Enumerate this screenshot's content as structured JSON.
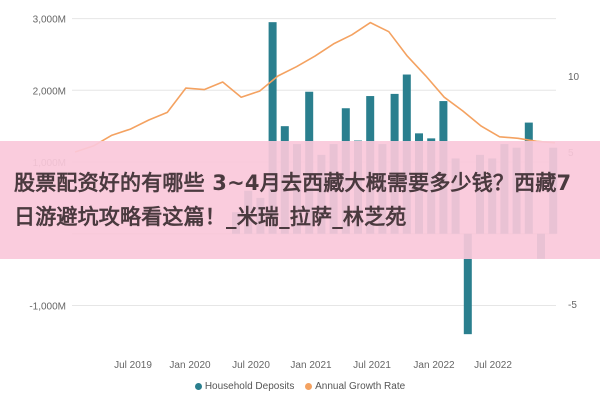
{
  "chart_data": {
    "type": "bar",
    "x_tick_labels": [
      "Jul 2019",
      "Jan 2020",
      "Jul 2020",
      "Jan 2021",
      "Jul 2021",
      "Jan 2022",
      "Jul 2022"
    ],
    "y_left_ticks": [
      "3,000M",
      "2,000M",
      "1,000M",
      "-1,000M"
    ],
    "y_right_ticks": [
      "10",
      "5",
      "-5"
    ],
    "ylim_left": [
      -1300,
      3050
    ],
    "ylim_right": [
      -6.5,
      14
    ],
    "grid": true,
    "legend_position": "bottom",
    "series": [
      {
        "name": "Household Deposits",
        "type": "bar",
        "axis": "left",
        "color": "#2a7f8e",
        "values": [
          300,
          600,
          500,
          2950,
          1500,
          1250,
          1980,
          1100,
          1250,
          1750,
          1300,
          1920,
          1250,
          1950,
          2220,
          1400,
          1330,
          1850,
          1050,
          -1400,
          1100,
          1050,
          1250,
          1200,
          1550,
          -350,
          1200
        ]
      },
      {
        "name": "Annual Growth Rate",
        "type": "line",
        "axis": "right",
        "color": "#f4a261",
        "values": [
          5.0,
          5.4,
          6.1,
          6.5,
          7.1,
          7.6,
          9.2,
          9.1,
          9.6,
          8.6,
          9.0,
          10.0,
          10.6,
          11.3,
          12.1,
          12.7,
          13.5,
          12.9,
          11.3,
          10.0,
          8.6,
          7.7,
          6.7,
          6.0,
          5.9,
          5.7,
          5.6
        ]
      }
    ]
  },
  "overlay": {
    "text": "股票配资好的有哪些 3~4月去西藏大概需要多少钱？西藏7日游避坑攻略看这篇！_米瑞_拉萨_林芝苑"
  },
  "colors": {
    "bar": "#2a7f8e",
    "line": "#f4a261",
    "banner": "#fac8da"
  }
}
